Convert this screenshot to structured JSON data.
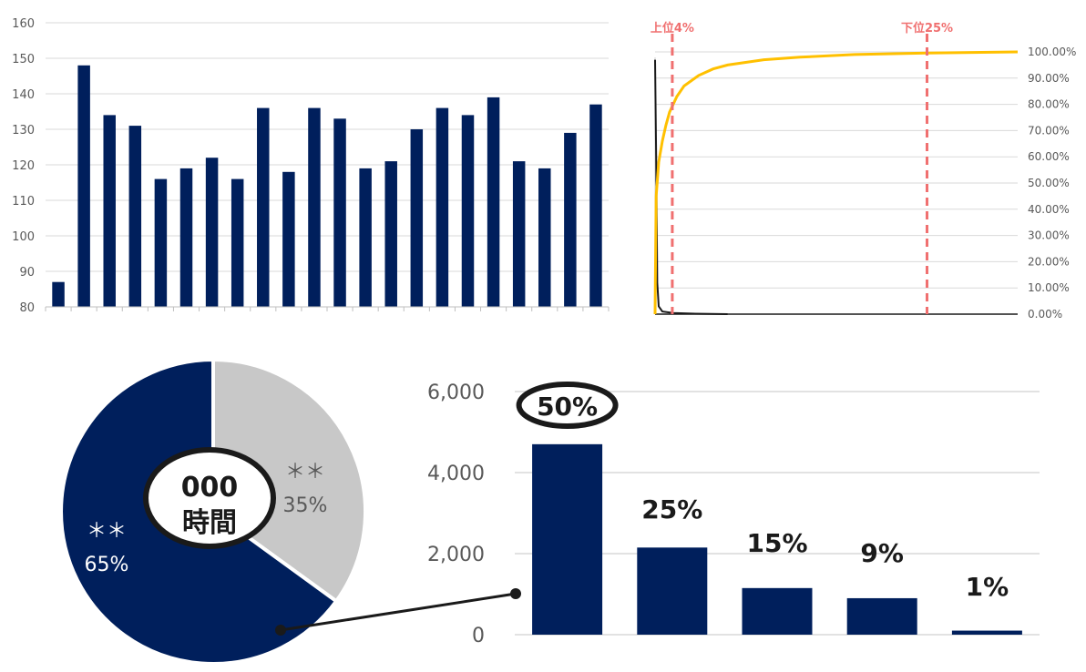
{
  "colors": {
    "navy": "#001f5c",
    "grey": "#c8c8c8",
    "gold": "#ffc000",
    "marker": "#f07070",
    "grid": "#d9d9d9",
    "black": "#1a1a1a"
  },
  "chart_data": [
    {
      "type": "bar",
      "yticks": [
        "80",
        "90",
        "100",
        "110",
        "120",
        "130",
        "140",
        "150",
        "160"
      ],
      "ylim": [
        80,
        160
      ],
      "grid": true,
      "values": [
        87,
        148,
        134,
        131,
        116,
        119,
        122,
        116,
        136,
        118,
        136,
        133,
        119,
        121,
        130,
        136,
        134,
        139,
        121,
        119,
        129,
        137
      ]
    },
    {
      "type": "line",
      "y2ticks": [
        "0.00%",
        "10.00%",
        "20.00%",
        "30.00%",
        "40.00%",
        "50.00%",
        "60.00%",
        "70.00%",
        "80.00%",
        "90.00%",
        "100.00%"
      ],
      "y2lim": [
        0,
        100
      ],
      "grid": true,
      "markers": [
        {
          "label": "上位4%",
          "position_pct": 4
        },
        {
          "label": "下位25%",
          "position_pct": 75
        }
      ],
      "cumulative_pct": [
        [
          0,
          0
        ],
        [
          0.3,
          45
        ],
        [
          1,
          58
        ],
        [
          2,
          66
        ],
        [
          3,
          72
        ],
        [
          4,
          77
        ],
        [
          6,
          83
        ],
        [
          8,
          87
        ],
        [
          12,
          91
        ],
        [
          16,
          93.5
        ],
        [
          20,
          95
        ],
        [
          30,
          97
        ],
        [
          40,
          98
        ],
        [
          55,
          99
        ],
        [
          75,
          99.6
        ],
        [
          100,
          100
        ]
      ],
      "black_series": [
        [
          0,
          97
        ],
        [
          0.3,
          60
        ],
        [
          0.6,
          12
        ],
        [
          1,
          3
        ],
        [
          2,
          1
        ],
        [
          5,
          0.4
        ],
        [
          10,
          0.2
        ],
        [
          20,
          0
        ],
        [
          100,
          0
        ]
      ]
    },
    {
      "type": "pie",
      "slices": [
        {
          "label": "＊＊",
          "value": 35,
          "text": "35%"
        },
        {
          "label": "＊＊",
          "value": 65,
          "text": "65%"
        }
      ],
      "center_label": [
        "000",
        "時間"
      ]
    },
    {
      "type": "bar",
      "yticks": [
        "0",
        "2,000",
        "4,000",
        "6,000"
      ],
      "ylim": [
        0,
        6000
      ],
      "grid": true,
      "values": [
        4700,
        2150,
        1150,
        900,
        100
      ],
      "data_labels": [
        "50%",
        "25%",
        "15%",
        "9%",
        "1%"
      ]
    }
  ]
}
